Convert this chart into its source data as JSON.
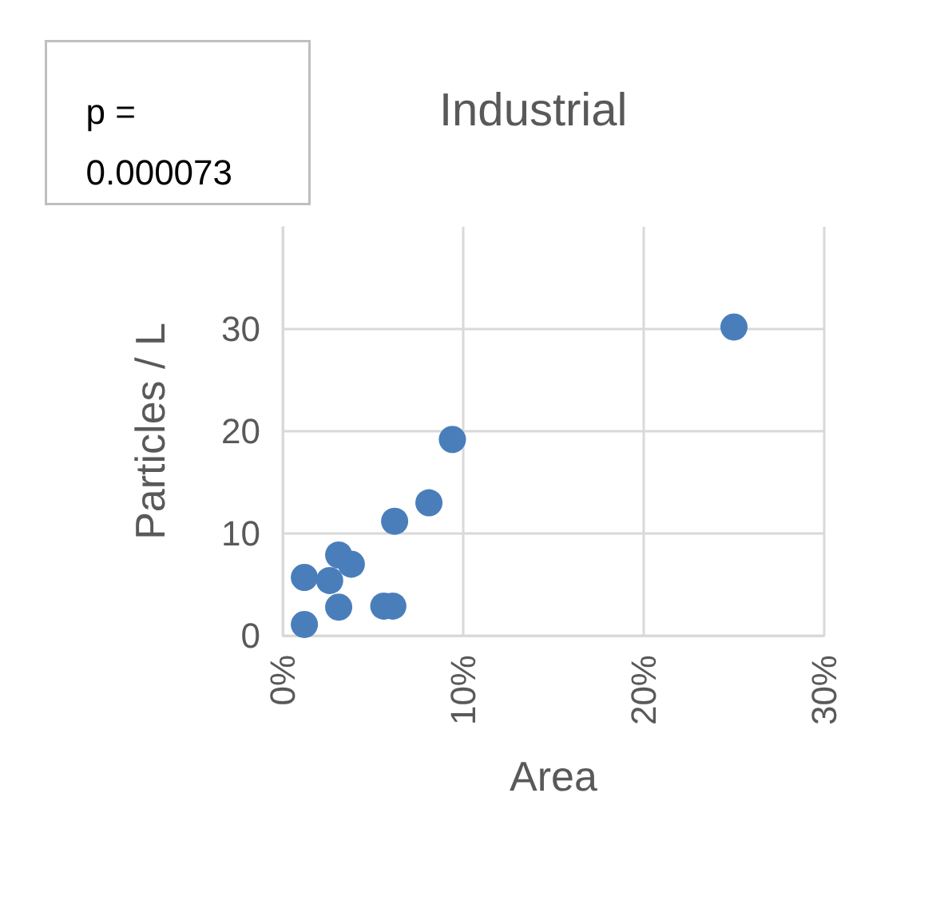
{
  "chart_data": {
    "type": "scatter",
    "title": "Industrial",
    "xlabel": "Area",
    "ylabel": "Particles / L",
    "annotations": [
      "p = 0.000073"
    ],
    "x": [
      25.0,
      9.4,
      8.1,
      6.2,
      3.1,
      3.8,
      1.2,
      2.6,
      3.1,
      5.6,
      6.1,
      1.2
    ],
    "series": [
      {
        "color": "#4a7ebb",
        "values": [
          30.2,
          19.2,
          13.0,
          11.2,
          7.9,
          7.0,
          5.7,
          5.4,
          2.8,
          2.9,
          2.9,
          1.1
        ]
      }
    ],
    "xlim": [
      0,
      30
    ],
    "xticks": [
      {
        "value": 0,
        "label": "0%"
      },
      {
        "value": 10,
        "label": "10%"
      },
      {
        "value": 20,
        "label": "20%"
      },
      {
        "value": 30,
        "label": "30%"
      }
    ],
    "ylim": [
      0,
      40
    ],
    "yticks": [
      0,
      10,
      20,
      30
    ],
    "grid": true,
    "marker": "circle"
  }
}
